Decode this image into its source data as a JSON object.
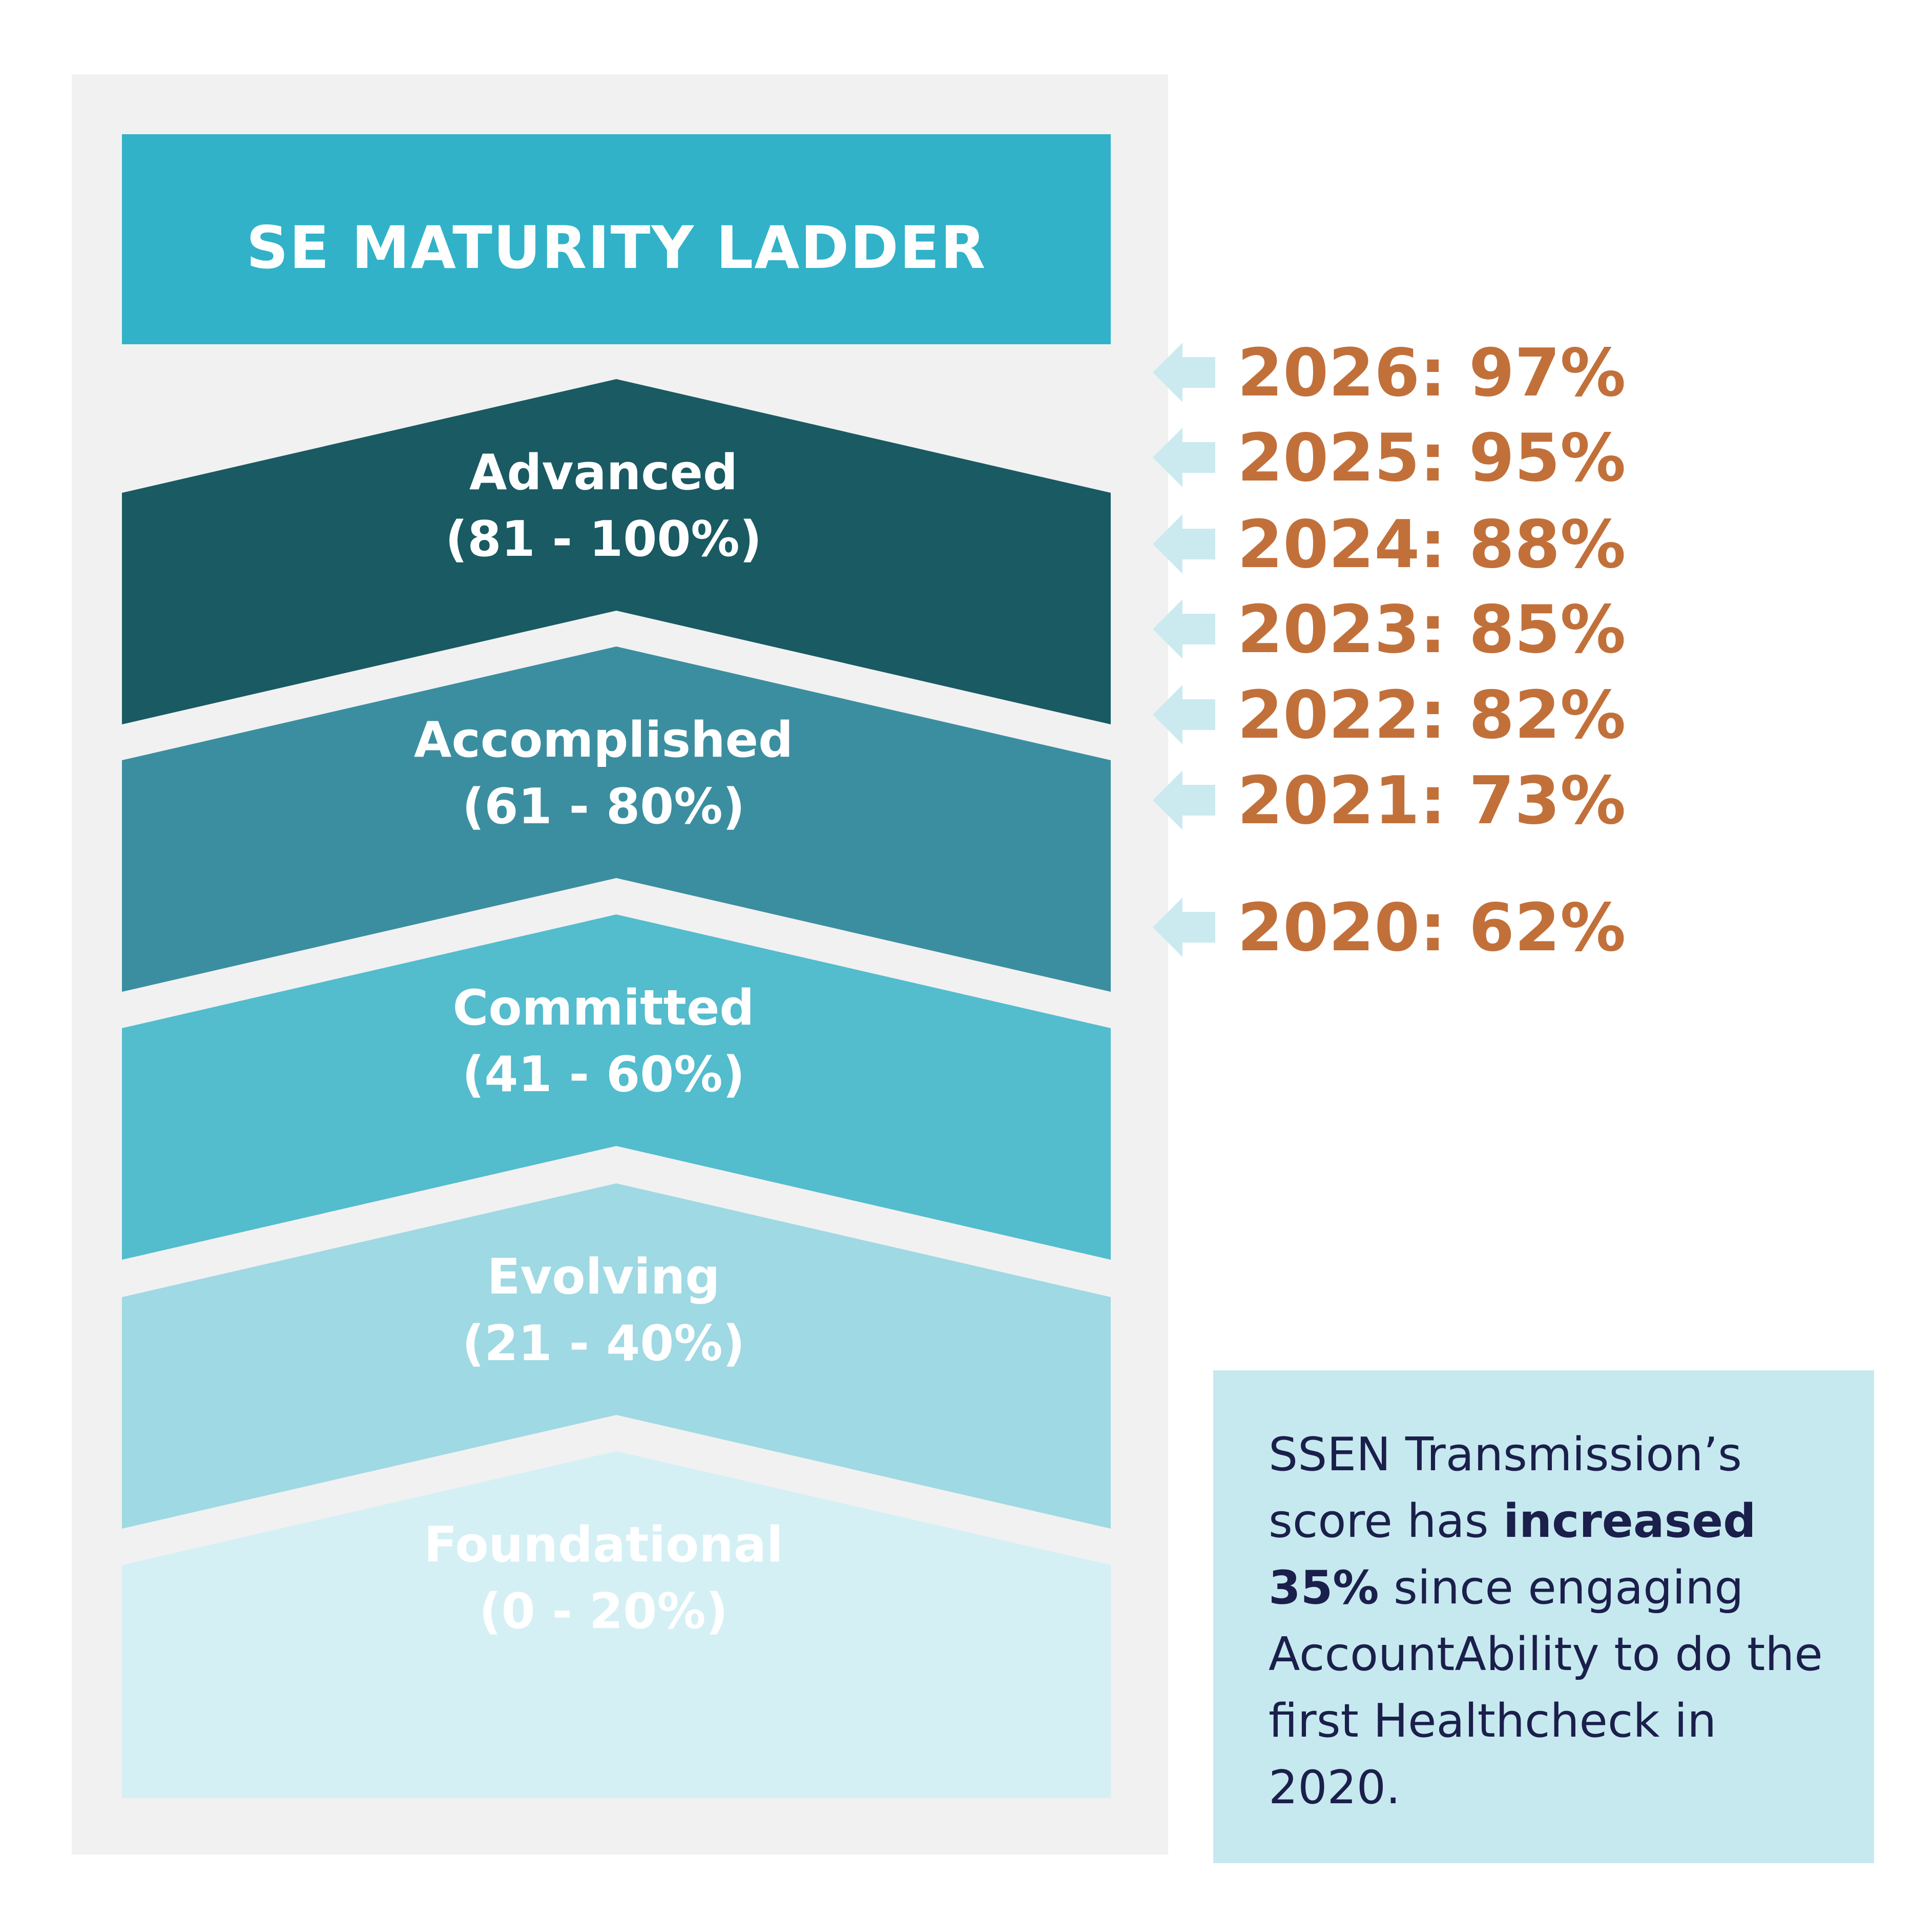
{
  "colors": {
    "panel_bg": "#f1f1f2",
    "title_bg": "#31b2c8",
    "year_text": "#c2703a",
    "arrow": "#cbeaf0",
    "note_bg": "#c6e9ef",
    "note_text": "#1b1f4b"
  },
  "title": "SE MATURITY LADDER",
  "levels": [
    {
      "name": "Advanced",
      "range": "(81 - 100%)",
      "color": "#195a63",
      "text_color": "#ffffff"
    },
    {
      "name": "Accomplished",
      "range": "(61 - 80%)",
      "color": "#3b8e9f",
      "text_color": "#ffffff"
    },
    {
      "name": "Committed",
      "range": "(41 - 60%)",
      "color": "#53bccd",
      "text_color": "#ffffff"
    },
    {
      "name": "Evolving",
      "range": "(21 - 40%)",
      "color": "#9fd9e3",
      "text_color": "#ffffff"
    },
    {
      "name": "Foundational",
      "range": "(0 - 20%)",
      "color": "#d4f0f4",
      "text_color": "#ffffff"
    }
  ],
  "scores": [
    {
      "label": "2026: 97%",
      "year": 2026,
      "value": 97
    },
    {
      "label": "2025: 95%",
      "year": 2025,
      "value": 95
    },
    {
      "label": "2024: 88%",
      "year": 2024,
      "value": 88
    },
    {
      "label": "2023: 85%",
      "year": 2023,
      "value": 85
    },
    {
      "label": "2022: 82%",
      "year": 2022,
      "value": 82
    },
    {
      "label": "2021: 73%",
      "year": 2021,
      "value": 73
    },
    {
      "label": "2020: 62%",
      "year": 2020,
      "value": 62
    }
  ],
  "note": {
    "part1": "SSEN Transmission’s score has ",
    "bold": "increased 35%",
    "part2": " since engaging AccountAbility to do the first Healthcheck in 2020."
  }
}
